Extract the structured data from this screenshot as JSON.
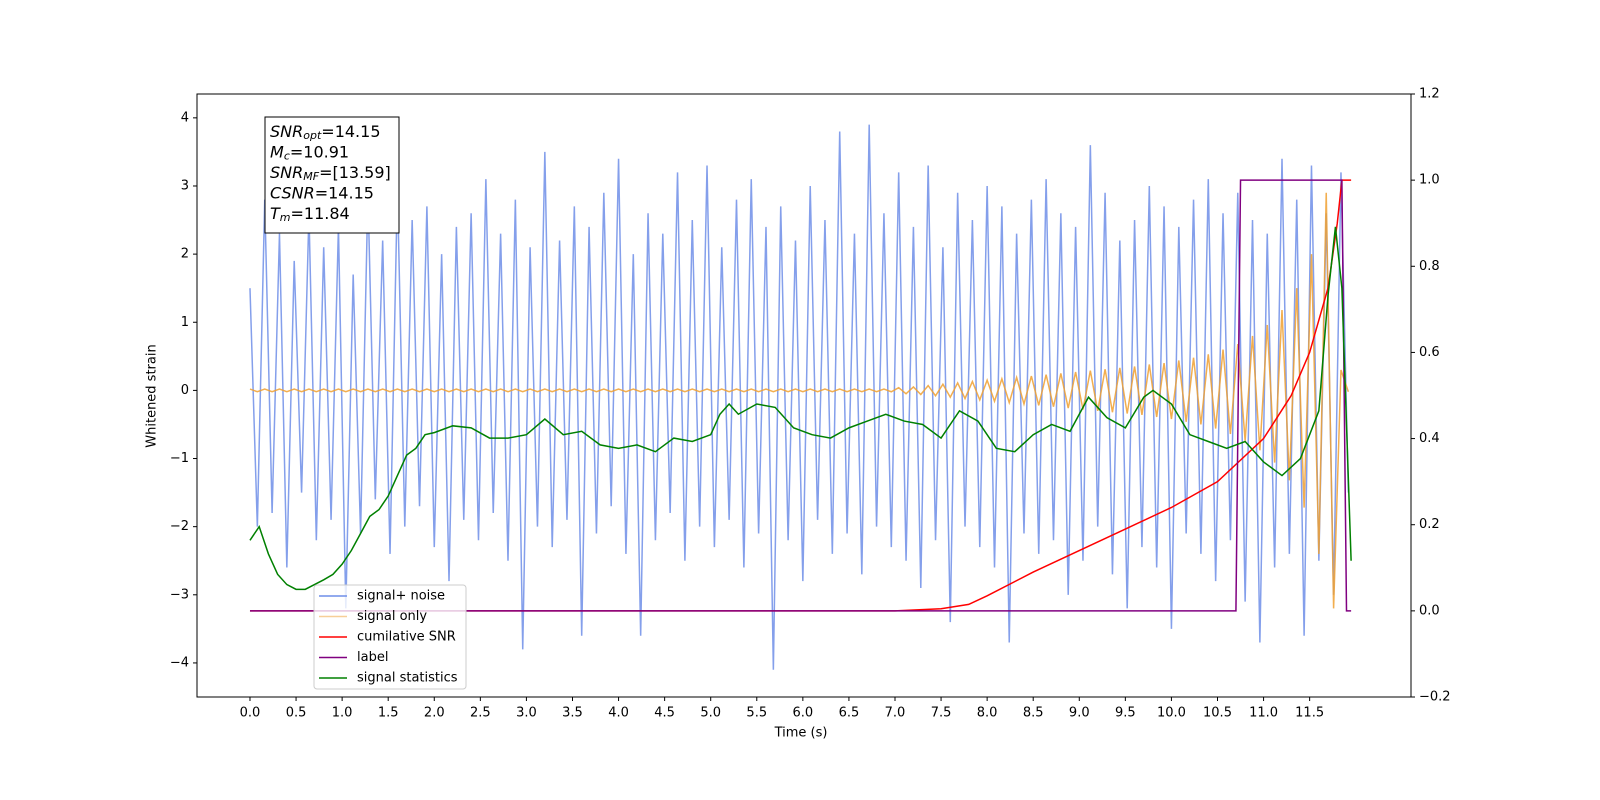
{
  "chart_data": {
    "type": "line",
    "xlabel": "Time (s)",
    "ylabel": "Whitened strain",
    "xlim": [
      -0.575,
      12.6
    ],
    "ylim": [
      -4.5,
      4.35
    ],
    "y2lim": [
      -0.2,
      1.2
    ],
    "xticks": [
      {
        "value": 0,
        "label": "0.0"
      },
      0.5,
      {
        "value": 1,
        "label": "1.0"
      },
      1.5,
      {
        "value": 2,
        "label": "2.0"
      },
      2.5,
      {
        "value": 3,
        "label": "3.0"
      },
      3.5,
      {
        "value": 4,
        "label": "4.0"
      },
      4.5,
      {
        "value": 5,
        "label": "5.0"
      },
      5.5,
      {
        "value": 6,
        "label": "6.0"
      },
      6.5,
      {
        "value": 7,
        "label": "7.0"
      },
      7.5,
      {
        "value": 8,
        "label": "8.0"
      },
      8.5,
      {
        "value": 9,
        "label": "9.0"
      },
      9.5,
      {
        "value": 10,
        "label": "10.0"
      },
      10.5,
      {
        "value": 11,
        "label": "11.0"
      },
      11.5
    ],
    "yticks": [
      {
        "value": -4,
        "label": "−4"
      },
      {
        "value": -3,
        "label": "−3"
      },
      {
        "value": -2,
        "label": "−2"
      },
      {
        "value": -1,
        "label": "−1"
      },
      0,
      1,
      2,
      3,
      4
    ],
    "y2ticks": [
      {
        "value": -0.2,
        "label": "−0.2"
      },
      {
        "value": 0,
        "label": "0.0"
      },
      0.2,
      0.4,
      0.6,
      0.8,
      {
        "value": 1,
        "label": "1.0"
      },
      1.2
    ],
    "legend_loc": "lower left",
    "annotations": [
      {
        "name": "SNR",
        "sub": "opt",
        "text": "=14.15"
      },
      {
        "name": "M",
        "sub": "c",
        "text": "=10.91"
      },
      {
        "name": "SNR",
        "sub": "MF",
        "text": "=[13.59]"
      },
      {
        "name": "CSNR",
        "sub": "",
        "text": "=14.15"
      },
      {
        "name": "T",
        "sub": "m",
        "text": "=11.84"
      }
    ],
    "x": [
      0,
      0.08,
      0.16,
      0.24,
      0.32,
      0.4,
      0.48,
      0.56,
      0.64,
      0.72,
      0.8,
      0.88,
      0.96,
      1.04,
      1.12,
      1.2,
      1.28,
      1.36,
      1.44,
      1.52,
      1.6,
      1.68,
      1.76,
      1.84,
      1.92,
      2,
      2.08,
      2.16,
      2.24,
      2.32,
      2.4,
      2.48,
      2.56,
      2.64,
      2.72,
      2.8,
      2.88,
      2.96,
      3.04,
      3.12,
      3.2,
      3.28,
      3.36,
      3.44,
      3.52,
      3.6,
      3.68,
      3.76,
      3.84,
      3.92,
      4,
      4.08,
      4.16,
      4.24,
      4.32,
      4.4,
      4.48,
      4.56,
      4.64,
      4.72,
      4.8,
      4.88,
      4.96,
      5.04,
      5.12,
      5.2,
      5.28,
      5.36,
      5.44,
      5.52,
      5.6,
      5.68,
      5.76,
      5.84,
      5.92,
      6,
      6.08,
      6.16,
      6.24,
      6.32,
      6.4,
      6.48,
      6.56,
      6.64,
      6.72,
      6.8,
      6.88,
      6.96,
      7.04,
      7.12,
      7.2,
      7.28,
      7.36,
      7.44,
      7.52,
      7.6,
      7.68,
      7.76,
      7.84,
      7.92,
      8,
      8.08,
      8.16,
      8.24,
      8.32,
      8.4,
      8.48,
      8.56,
      8.64,
      8.72,
      8.8,
      8.88,
      8.96,
      9.04,
      9.12,
      9.2,
      9.28,
      9.36,
      9.44,
      9.52,
      9.6,
      9.68,
      9.76,
      9.84,
      9.92,
      10,
      10.08,
      10.16,
      10.24,
      10.32,
      10.4,
      10.48,
      10.56,
      10.64,
      10.72,
      10.8,
      10.88,
      10.96,
      11.04,
      11.12,
      11.2,
      11.28,
      11.36,
      11.44,
      11.52,
      11.6,
      11.68,
      11.76,
      11.84,
      11.92
    ],
    "series": [
      {
        "name": "signal+ noise",
        "color": "#6f8ee8",
        "axis": "y",
        "values": [
          1.5,
          -2.0,
          2.8,
          -1.8,
          2.3,
          -2.6,
          1.9,
          -1.5,
          2.6,
          -2.2,
          2.1,
          -1.9,
          2.4,
          -3.2,
          1.7,
          -2.1,
          2.9,
          -1.6,
          2.2,
          -2.4,
          3.0,
          -2.0,
          2.5,
          -1.7,
          2.7,
          -2.3,
          2.0,
          -2.8,
          2.4,
          -1.9,
          2.6,
          -2.2,
          3.1,
          -1.8,
          2.3,
          -2.5,
          2.8,
          -3.8,
          2.1,
          -2.0,
          3.5,
          -2.3,
          2.2,
          -1.9,
          2.7,
          -3.6,
          2.4,
          -2.1,
          2.9,
          -1.7,
          3.4,
          -2.4,
          2.0,
          -3.6,
          2.6,
          -2.2,
          2.3,
          -1.8,
          3.2,
          -2.5,
          2.5,
          -2.0,
          3.3,
          -2.3,
          2.1,
          -1.9,
          2.8,
          -2.6,
          3.1,
          -2.1,
          2.4,
          -4.1,
          2.7,
          -2.2,
          2.2,
          -2.8,
          3.0,
          -1.9,
          2.5,
          -2.4,
          3.8,
          -2.1,
          2.3,
          -2.7,
          3.9,
          -2.0,
          2.6,
          -2.3,
          3.2,
          -2.5,
          2.4,
          -2.9,
          3.3,
          -2.2,
          2.1,
          -3.4,
          2.9,
          -2.0,
          2.5,
          -2.3,
          3.0,
          -2.6,
          2.7,
          -3.7,
          2.3,
          -2.1,
          2.8,
          -2.4,
          3.1,
          -2.2,
          2.6,
          -3.0,
          2.4,
          -2.5,
          3.6,
          -2.0,
          2.9,
          -2.7,
          2.2,
          -3.2,
          2.5,
          -2.3,
          3.0,
          -2.6,
          2.7,
          -3.5,
          2.4,
          -2.1,
          2.8,
          -2.4,
          3.1,
          -2.8,
          2.6,
          -2.2,
          2.9,
          -3.1,
          2.5,
          -3.7,
          2.3,
          -2.6,
          3.4,
          -2.4,
          2.8,
          -3.6,
          3.3,
          -2.5,
          2.6,
          -3.0,
          3.2,
          -1.5
        ]
      },
      {
        "name": "signal only",
        "color": "#f0a030",
        "axis": "y",
        "values": [
          0.02,
          -0.02,
          0.02,
          -0.02,
          0.02,
          -0.02,
          0.02,
          -0.02,
          0.02,
          -0.02,
          0.02,
          -0.02,
          0.02,
          -0.02,
          0.02,
          -0.02,
          0.02,
          -0.02,
          0.02,
          -0.02,
          0.02,
          -0.02,
          0.02,
          -0.02,
          0.02,
          -0.02,
          0.02,
          -0.02,
          0.02,
          -0.02,
          0.02,
          -0.02,
          0.02,
          -0.02,
          0.02,
          -0.02,
          0.02,
          -0.02,
          0.02,
          -0.02,
          0.02,
          -0.02,
          0.02,
          -0.02,
          0.02,
          -0.02,
          0.02,
          -0.02,
          0.02,
          -0.02,
          0.02,
          -0.02,
          0.02,
          -0.02,
          0.02,
          -0.02,
          0.02,
          -0.02,
          0.02,
          -0.02,
          0.02,
          -0.02,
          0.02,
          -0.02,
          0.02,
          -0.02,
          0.02,
          -0.02,
          0.02,
          -0.02,
          0.02,
          -0.02,
          0.02,
          -0.02,
          0.02,
          -0.02,
          0.02,
          -0.02,
          0.02,
          -0.02,
          0.02,
          -0.02,
          0.02,
          -0.02,
          0.02,
          -0.02,
          0.02,
          -0.02,
          0.04,
          -0.05,
          0.05,
          -0.06,
          0.07,
          -0.08,
          0.09,
          -0.1,
          0.11,
          -0.12,
          0.13,
          -0.14,
          0.15,
          -0.16,
          0.17,
          -0.18,
          0.19,
          -0.2,
          0.21,
          -0.22,
          0.23,
          -0.24,
          0.25,
          -0.26,
          0.27,
          -0.28,
          0.29,
          -0.3,
          0.31,
          -0.32,
          0.33,
          -0.34,
          0.35,
          -0.36,
          0.38,
          -0.39,
          0.4,
          -0.42,
          0.44,
          -0.46,
          0.48,
          -0.5,
          0.53,
          -0.56,
          0.6,
          -0.64,
          0.68,
          -0.74,
          0.8,
          -0.88,
          0.96,
          -1.06,
          1.18,
          -1.32,
          1.5,
          -1.72,
          2.0,
          -2.4,
          2.9,
          -3.2,
          0.3,
          -0.02
        ]
      },
      {
        "name": "cumilative SNR",
        "color": "#ff0000",
        "axis": "y2",
        "x": [
          0,
          7,
          7.5,
          7.8,
          8.0,
          8.5,
          9.0,
          9.5,
          10.0,
          10.5,
          11.0,
          11.3,
          11.5,
          11.7,
          11.8,
          11.85,
          11.95
        ],
        "values": [
          0,
          0,
          0.005,
          0.015,
          0.035,
          0.09,
          0.14,
          0.19,
          0.24,
          0.3,
          0.4,
          0.5,
          0.6,
          0.75,
          0.9,
          1.0,
          1.0
        ]
      },
      {
        "name": "label",
        "color": "#800080",
        "axis": "y2",
        "x": [
          0,
          10.7,
          10.75,
          11.85,
          11.9,
          11.95
        ],
        "values": [
          0,
          0,
          1.0,
          1.0,
          0,
          0
        ]
      },
      {
        "name": "signal statistics",
        "color": "#008000",
        "axis": "y",
        "x": [
          0,
          0.1,
          0.2,
          0.3,
          0.4,
          0.5,
          0.6,
          0.7,
          0.8,
          0.9,
          1.0,
          1.1,
          1.2,
          1.3,
          1.4,
          1.5,
          1.6,
          1.7,
          1.8,
          1.9,
          2.0,
          2.2,
          2.4,
          2.6,
          2.8,
          3.0,
          3.2,
          3.4,
          3.6,
          3.8,
          4.0,
          4.2,
          4.4,
          4.6,
          4.8,
          5.0,
          5.1,
          5.2,
          5.3,
          5.5,
          5.7,
          5.9,
          6.1,
          6.3,
          6.5,
          6.7,
          6.9,
          7.1,
          7.3,
          7.5,
          7.7,
          7.9,
          8.1,
          8.3,
          8.5,
          8.7,
          8.9,
          9.1,
          9.3,
          9.5,
          9.7,
          9.8,
          10.0,
          10.2,
          10.4,
          10.6,
          10.8,
          11.0,
          11.2,
          11.4,
          11.6,
          11.7,
          11.78,
          11.85,
          11.9,
          11.95
        ],
        "values": [
          -2.2,
          -2.0,
          -2.4,
          -2.7,
          -2.85,
          -2.92,
          -2.92,
          -2.85,
          -2.78,
          -2.7,
          -2.55,
          -2.35,
          -2.1,
          -1.85,
          -1.75,
          -1.55,
          -1.25,
          -0.95,
          -0.85,
          -0.65,
          -0.62,
          -0.52,
          -0.55,
          -0.7,
          -0.7,
          -0.65,
          -0.42,
          -0.65,
          -0.6,
          -0.8,
          -0.85,
          -0.8,
          -0.9,
          -0.7,
          -0.75,
          -0.65,
          -0.35,
          -0.2,
          -0.35,
          -0.2,
          -0.25,
          -0.55,
          -0.65,
          -0.7,
          -0.55,
          -0.45,
          -0.35,
          -0.45,
          -0.5,
          -0.7,
          -0.3,
          -0.45,
          -0.85,
          -0.9,
          -0.65,
          -0.5,
          -0.6,
          -0.1,
          -0.4,
          -0.55,
          -0.1,
          0.0,
          -0.2,
          -0.65,
          -0.75,
          -0.85,
          -0.75,
          -1.05,
          -1.25,
          -1.0,
          -0.3,
          1.4,
          2.4,
          1.5,
          -0.5,
          -2.5
        ]
      }
    ]
  }
}
